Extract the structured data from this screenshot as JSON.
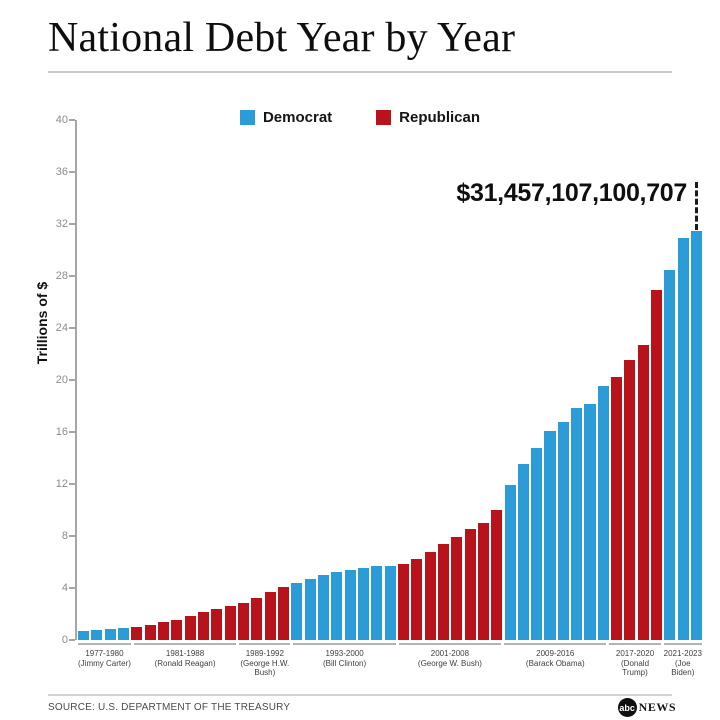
{
  "header": {
    "title": "National Debt Year by Year"
  },
  "legend": {
    "democrat": "Democrat",
    "republican": "Republican"
  },
  "colors": {
    "democrat": "#2B9CD8",
    "republican": "#B8121A"
  },
  "annotation": {
    "debt_total": "$31,457,107,100,707"
  },
  "footer": {
    "source": "SOURCE: U.S. DEPARTMENT OF THE TREASURY",
    "logo_abc": "abc",
    "logo_news": "NEWS"
  },
  "chart_data": {
    "type": "bar",
    "title": "National Debt Year by Year",
    "ylabel": "Trillions of $",
    "unit": "trillions of US dollars",
    "ylim": [
      0,
      40
    ],
    "yticks": [
      0,
      4,
      8,
      12,
      16,
      20,
      24,
      28,
      32,
      36,
      40
    ],
    "legend_position": "top",
    "grid": false,
    "annotation": "$31,457,107,100,707",
    "groups": [
      {
        "years": "1977-1980",
        "president": "Jimmy Carter",
        "party": "democrat",
        "start_year": 1977,
        "label_lines": [
          "1977-1980",
          "(Jimmy Carter)"
        ],
        "values": [
          0.7,
          0.77,
          0.83,
          0.91
        ]
      },
      {
        "years": "1981-1988",
        "president": "Ronald Reagan",
        "party": "republican",
        "start_year": 1981,
        "label_lines": [
          "1981-1988",
          "(Ronald Reagan)"
        ],
        "values": [
          1.0,
          1.14,
          1.38,
          1.57,
          1.82,
          2.13,
          2.35,
          2.6
        ]
      },
      {
        "years": "1989-1992",
        "president": "George H.W. Bush",
        "party": "republican",
        "start_year": 1989,
        "label_lines": [
          "1989-1992",
          "(George H.W.",
          "Bush)"
        ],
        "values": [
          2.86,
          3.23,
          3.67,
          4.06
        ]
      },
      {
        "years": "1993-2000",
        "president": "Bill Clinton",
        "party": "democrat",
        "start_year": 1993,
        "label_lines": [
          "1993-2000",
          "(Bill Clinton)"
        ],
        "values": [
          4.41,
          4.69,
          4.97,
          5.22,
          5.41,
          5.53,
          5.66,
          5.67
        ]
      },
      {
        "years": "2001-2008",
        "president": "George W. Bush",
        "party": "republican",
        "start_year": 2001,
        "label_lines": [
          "2001-2008",
          "(George W. Bush)"
        ],
        "values": [
          5.81,
          6.23,
          6.78,
          7.38,
          7.93,
          8.51,
          9.01,
          10.02
        ]
      },
      {
        "years": "2009-2016",
        "president": "Barack Obama",
        "party": "democrat",
        "start_year": 2009,
        "label_lines": [
          "2009-2016",
          "(Barack Obama)"
        ],
        "values": [
          11.91,
          13.56,
          14.79,
          16.07,
          16.74,
          17.82,
          18.15,
          19.57
        ]
      },
      {
        "years": "2017-2020",
        "president": "Donald Trump",
        "party": "republican",
        "start_year": 2017,
        "label_lines": [
          "2017-2020",
          "(Donald",
          "Trump)"
        ],
        "values": [
          20.24,
          21.52,
          22.72,
          26.95
        ]
      },
      {
        "years": "2021-2023",
        "president": "Joe Biden",
        "party": "democrat",
        "start_year": 2021,
        "label_lines": [
          "2021-2023",
          "(Joe",
          "Biden)"
        ],
        "values": [
          28.43,
          30.93,
          31.46
        ]
      }
    ]
  }
}
